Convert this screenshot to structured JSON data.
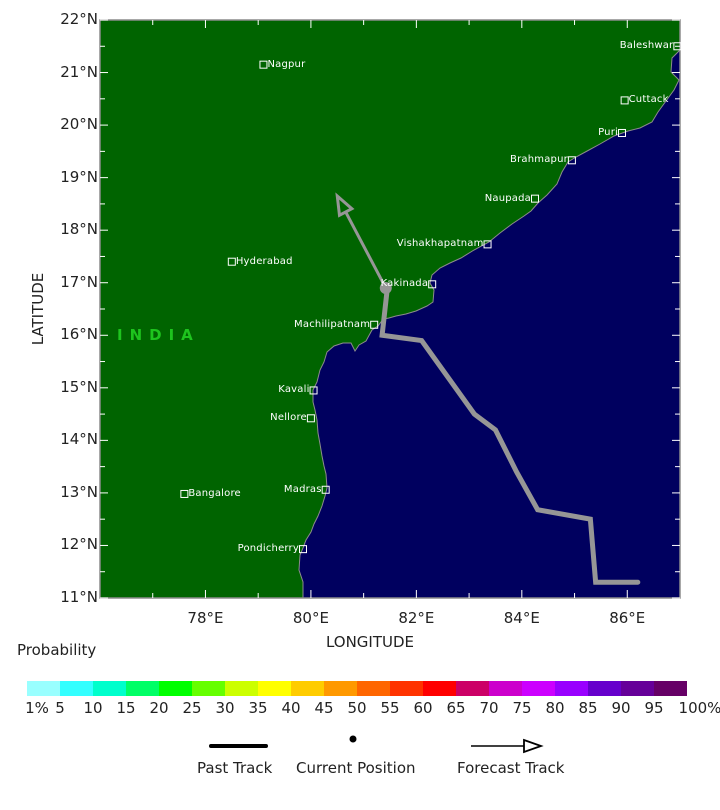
{
  "map": {
    "extent": {
      "lon_min": 76,
      "lon_max": 87,
      "lat_min": 11,
      "lat_max": 22
    },
    "colors": {
      "land": "#006400",
      "sea": "#00005f",
      "track": "#969696",
      "coast": "#8c8c8c",
      "country_label": "#1ec41e"
    },
    "country_label": "INDIA",
    "x_axis": {
      "title": "LONGITUDE",
      "ticks": [
        "78°E",
        "80°E",
        "82°E",
        "84°E",
        "86°E"
      ]
    },
    "y_axis": {
      "title": "LATITUDE",
      "ticks": [
        "22°N",
        "21°N",
        "20°N",
        "19°N",
        "18°N",
        "17°N",
        "16°N",
        "15°N",
        "14°N",
        "13°N",
        "12°N",
        "11°N"
      ]
    },
    "cities": [
      {
        "name": "Nagpur",
        "lon": 79.1,
        "lat": 21.15,
        "label_side": "right"
      },
      {
        "name": "Hyderabad",
        "lon": 78.5,
        "lat": 17.4,
        "label_side": "right"
      },
      {
        "name": "Bangalore",
        "lon": 77.6,
        "lat": 12.98,
        "label_side": "right"
      },
      {
        "name": "Baleshwar",
        "lon": 86.95,
        "lat": 21.5,
        "label_side": "left"
      },
      {
        "name": "Cuttack",
        "lon": 85.95,
        "lat": 20.47,
        "label_side": "right"
      },
      {
        "name": "Puri",
        "lon": 85.9,
        "lat": 19.85,
        "label_side": "left"
      },
      {
        "name": "Brahmapur",
        "lon": 84.95,
        "lat": 19.33,
        "label_side": "left"
      },
      {
        "name": "Naupada",
        "lon": 84.25,
        "lat": 18.6,
        "label_side": "left"
      },
      {
        "name": "Vishakhapatnam",
        "lon": 83.35,
        "lat": 17.73,
        "label_side": "left"
      },
      {
        "name": "Kakinada",
        "lon": 82.3,
        "lat": 16.97,
        "label_side": "left"
      },
      {
        "name": "Machilipatnam",
        "lon": 81.2,
        "lat": 16.2,
        "label_side": "left"
      },
      {
        "name": "Kavali",
        "lon": 80.05,
        "lat": 14.95,
        "label_side": "left"
      },
      {
        "name": "Nellore",
        "lon": 80.0,
        "lat": 14.42,
        "label_side": "left"
      },
      {
        "name": "Madras",
        "lon": 80.28,
        "lat": 13.06,
        "label_side": "left"
      },
      {
        "name": "Pondicherry",
        "lon": 79.85,
        "lat": 11.93,
        "label_side": "left"
      }
    ],
    "past_track": [
      [
        86.2,
        11.3
      ],
      [
        85.4,
        11.3
      ],
      [
        85.3,
        12.5
      ],
      [
        84.3,
        12.68
      ],
      [
        83.9,
        13.4
      ],
      [
        83.5,
        14.2
      ],
      [
        83.1,
        14.5
      ],
      [
        82.1,
        15.9
      ],
      [
        81.35,
        16.0
      ],
      [
        81.45,
        16.9
      ]
    ],
    "current_position": {
      "lon": 81.42,
      "lat": 16.9
    },
    "forecast_track": [
      [
        81.42,
        16.9
      ],
      [
        80.5,
        18.65
      ]
    ]
  },
  "legend": {
    "probability_title": "Probability",
    "colorbar": {
      "colors": [
        "#99ffff",
        "#33ffff",
        "#00ffcc",
        "#00ff66",
        "#00ff00",
        "#66ff00",
        "#ccff00",
        "#ffff00",
        "#ffcc00",
        "#ff9900",
        "#ff6600",
        "#ff3300",
        "#ff0000",
        "#cc0066",
        "#cc00cc",
        "#cc00ff",
        "#9900ff",
        "#6600cc",
        "#660099",
        "#660066"
      ],
      "labels": [
        "1%",
        "5",
        "10",
        "15",
        "20",
        "25",
        "30",
        "35",
        "40",
        "45",
        "50",
        "55",
        "60",
        "65",
        "70",
        "75",
        "80",
        "85",
        "90",
        "95",
        "100%"
      ]
    },
    "items": [
      {
        "label": "Past Track",
        "symbol": "thick-line"
      },
      {
        "label": "Current Position",
        "symbol": "dot"
      },
      {
        "label": "Forecast Track",
        "symbol": "arrow"
      }
    ]
  }
}
